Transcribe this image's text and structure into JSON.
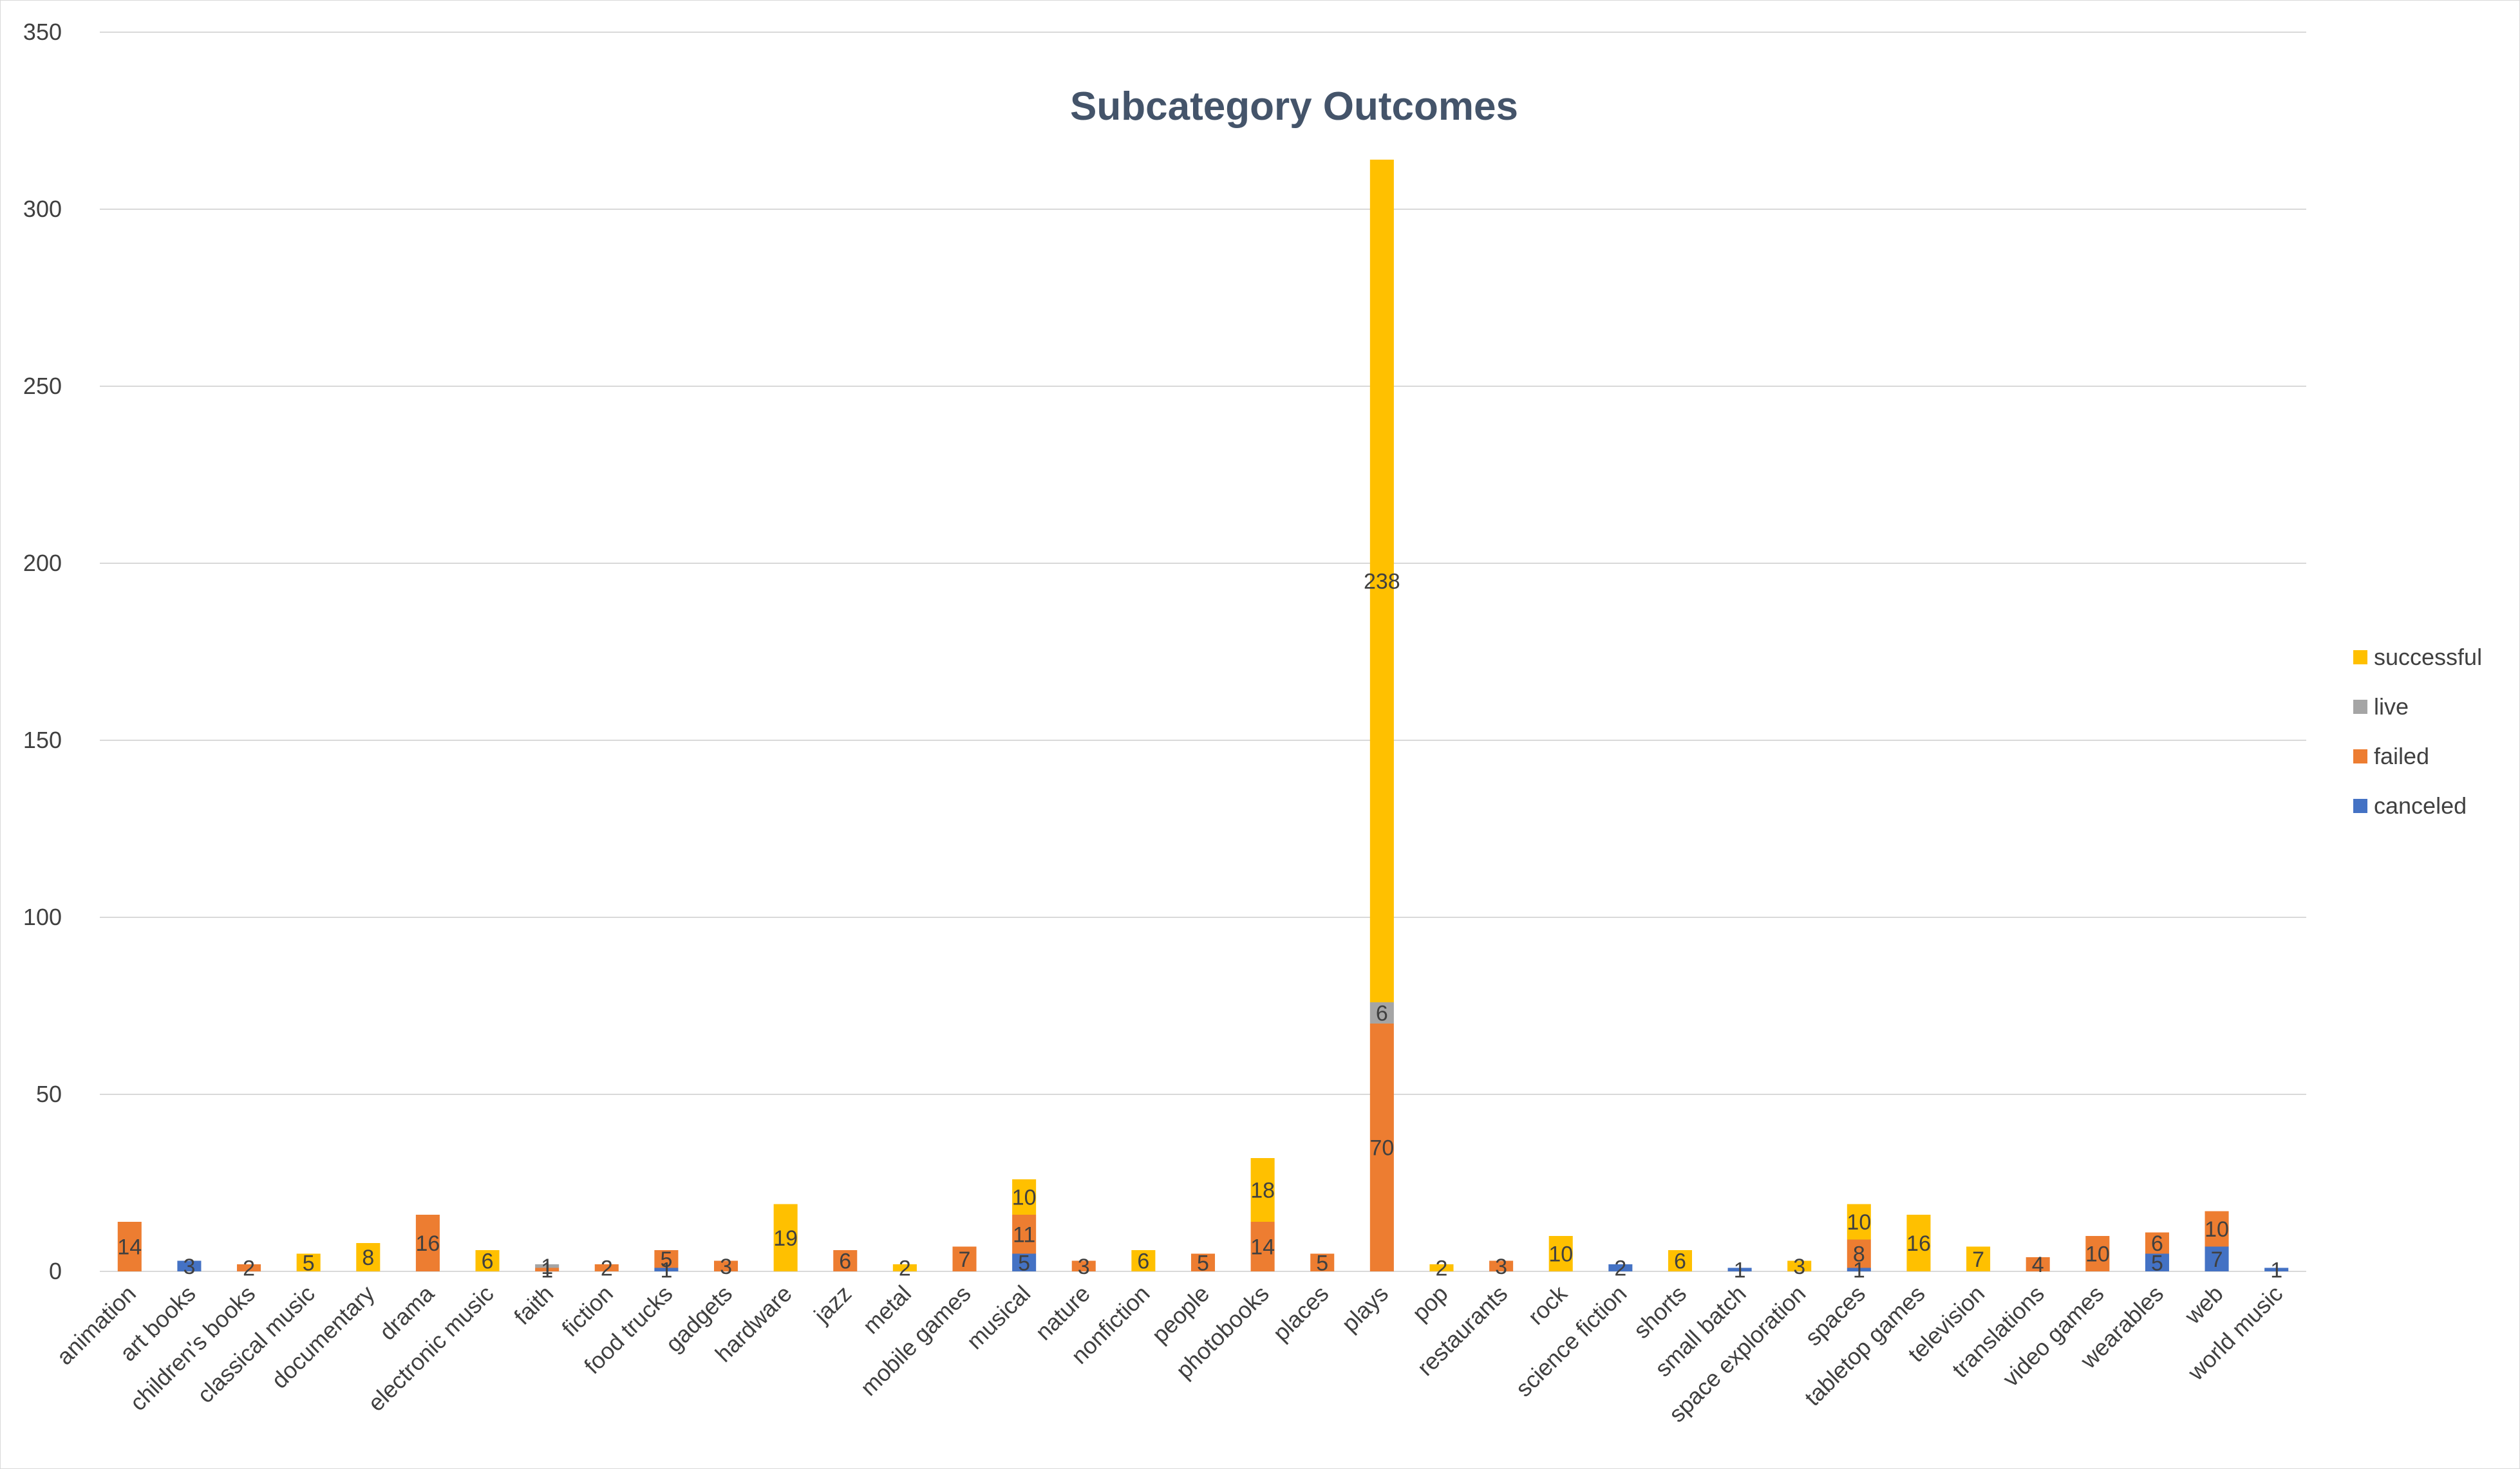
{
  "chart_data": {
    "type": "bar",
    "stacked": true,
    "title": "Subcategory Outcomes",
    "xlabel": "",
    "ylabel": "",
    "ylim": [
      0,
      350
    ],
    "yticks": [
      0,
      50,
      100,
      150,
      200,
      250,
      300,
      350
    ],
    "grid": true,
    "legend_position": "right",
    "categories": [
      "animation",
      "art books",
      "children's books",
      "classical music",
      "documentary",
      "drama",
      "electronic music",
      "faith",
      "fiction",
      "food trucks",
      "gadgets",
      "hardware",
      "jazz",
      "metal",
      "mobile games",
      "musical",
      "nature",
      "nonfiction",
      "people",
      "photobooks",
      "places",
      "plays",
      "pop",
      "restaurants",
      "rock",
      "science fiction",
      "shorts",
      "small batch",
      "space exploration",
      "spaces",
      "tabletop games",
      "television",
      "translations",
      "video games",
      "wearables",
      "web",
      "world music"
    ],
    "series": [
      {
        "name": "canceled",
        "color": "#4472c4",
        "values": [
          0,
          3,
          0,
          0,
          0,
          0,
          0,
          0,
          0,
          1,
          0,
          0,
          0,
          0,
          0,
          5,
          0,
          0,
          0,
          0,
          0,
          0,
          0,
          0,
          0,
          2,
          0,
          1,
          0,
          1,
          0,
          0,
          0,
          0,
          5,
          7,
          1
        ]
      },
      {
        "name": "failed",
        "color": "#ed7d31",
        "values": [
          14,
          0,
          2,
          0,
          0,
          16,
          0,
          1,
          2,
          5,
          3,
          0,
          6,
          0,
          7,
          11,
          3,
          0,
          5,
          14,
          5,
          70,
          0,
          3,
          0,
          0,
          0,
          0,
          0,
          8,
          0,
          0,
          4,
          10,
          6,
          10,
          0
        ]
      },
      {
        "name": "live",
        "color": "#a5a5a5",
        "values": [
          0,
          0,
          0,
          0,
          0,
          0,
          0,
          1,
          0,
          0,
          0,
          0,
          0,
          0,
          0,
          0,
          0,
          0,
          0,
          0,
          0,
          6,
          0,
          0,
          0,
          0,
          0,
          0,
          0,
          0,
          0,
          0,
          0,
          0,
          0,
          0,
          0
        ]
      },
      {
        "name": "successful",
        "color": "#ffc000",
        "values": [
          0,
          0,
          0,
          5,
          8,
          0,
          6,
          0,
          0,
          0,
          0,
          19,
          0,
          2,
          0,
          10,
          0,
          6,
          0,
          18,
          0,
          238,
          2,
          0,
          10,
          0,
          6,
          0,
          3,
          10,
          16,
          7,
          0,
          0,
          0,
          0,
          0
        ]
      }
    ]
  }
}
